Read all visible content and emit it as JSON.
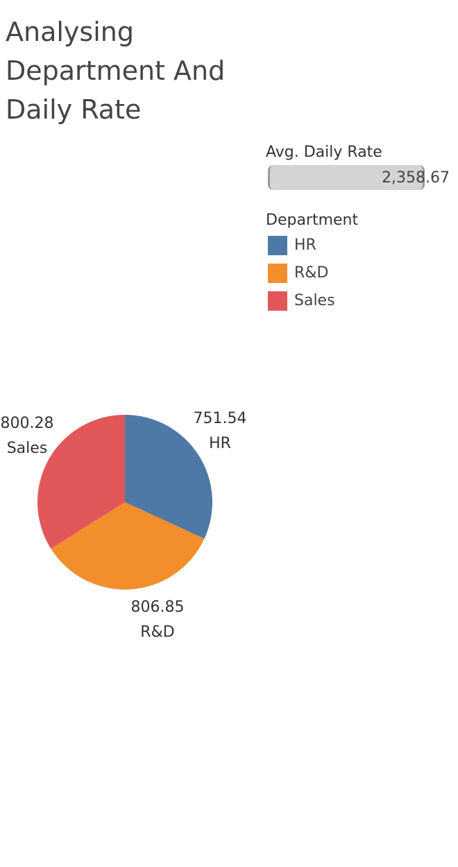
{
  "title": "Analysing Department And Daily Rate",
  "size_legend": {
    "title": "Avg. Daily Rate",
    "value": "2,358.67"
  },
  "color_legend": {
    "title": "Department",
    "items": [
      {
        "label": "HR",
        "color": "#4e79a7"
      },
      {
        "label": "R&D",
        "color": "#f28e2b"
      },
      {
        "label": "Sales",
        "color": "#e15759"
      }
    ]
  },
  "chart_data": {
    "type": "pie",
    "categories": [
      "HR",
      "R&D",
      "Sales"
    ],
    "values": [
      751.54,
      806.85,
      800.28
    ],
    "value_labels": [
      "751.54",
      "806.85",
      "800.28"
    ],
    "colors": [
      "#4e79a7",
      "#f28e2b",
      "#e15759"
    ],
    "start": "top",
    "direction": "clockwise"
  }
}
